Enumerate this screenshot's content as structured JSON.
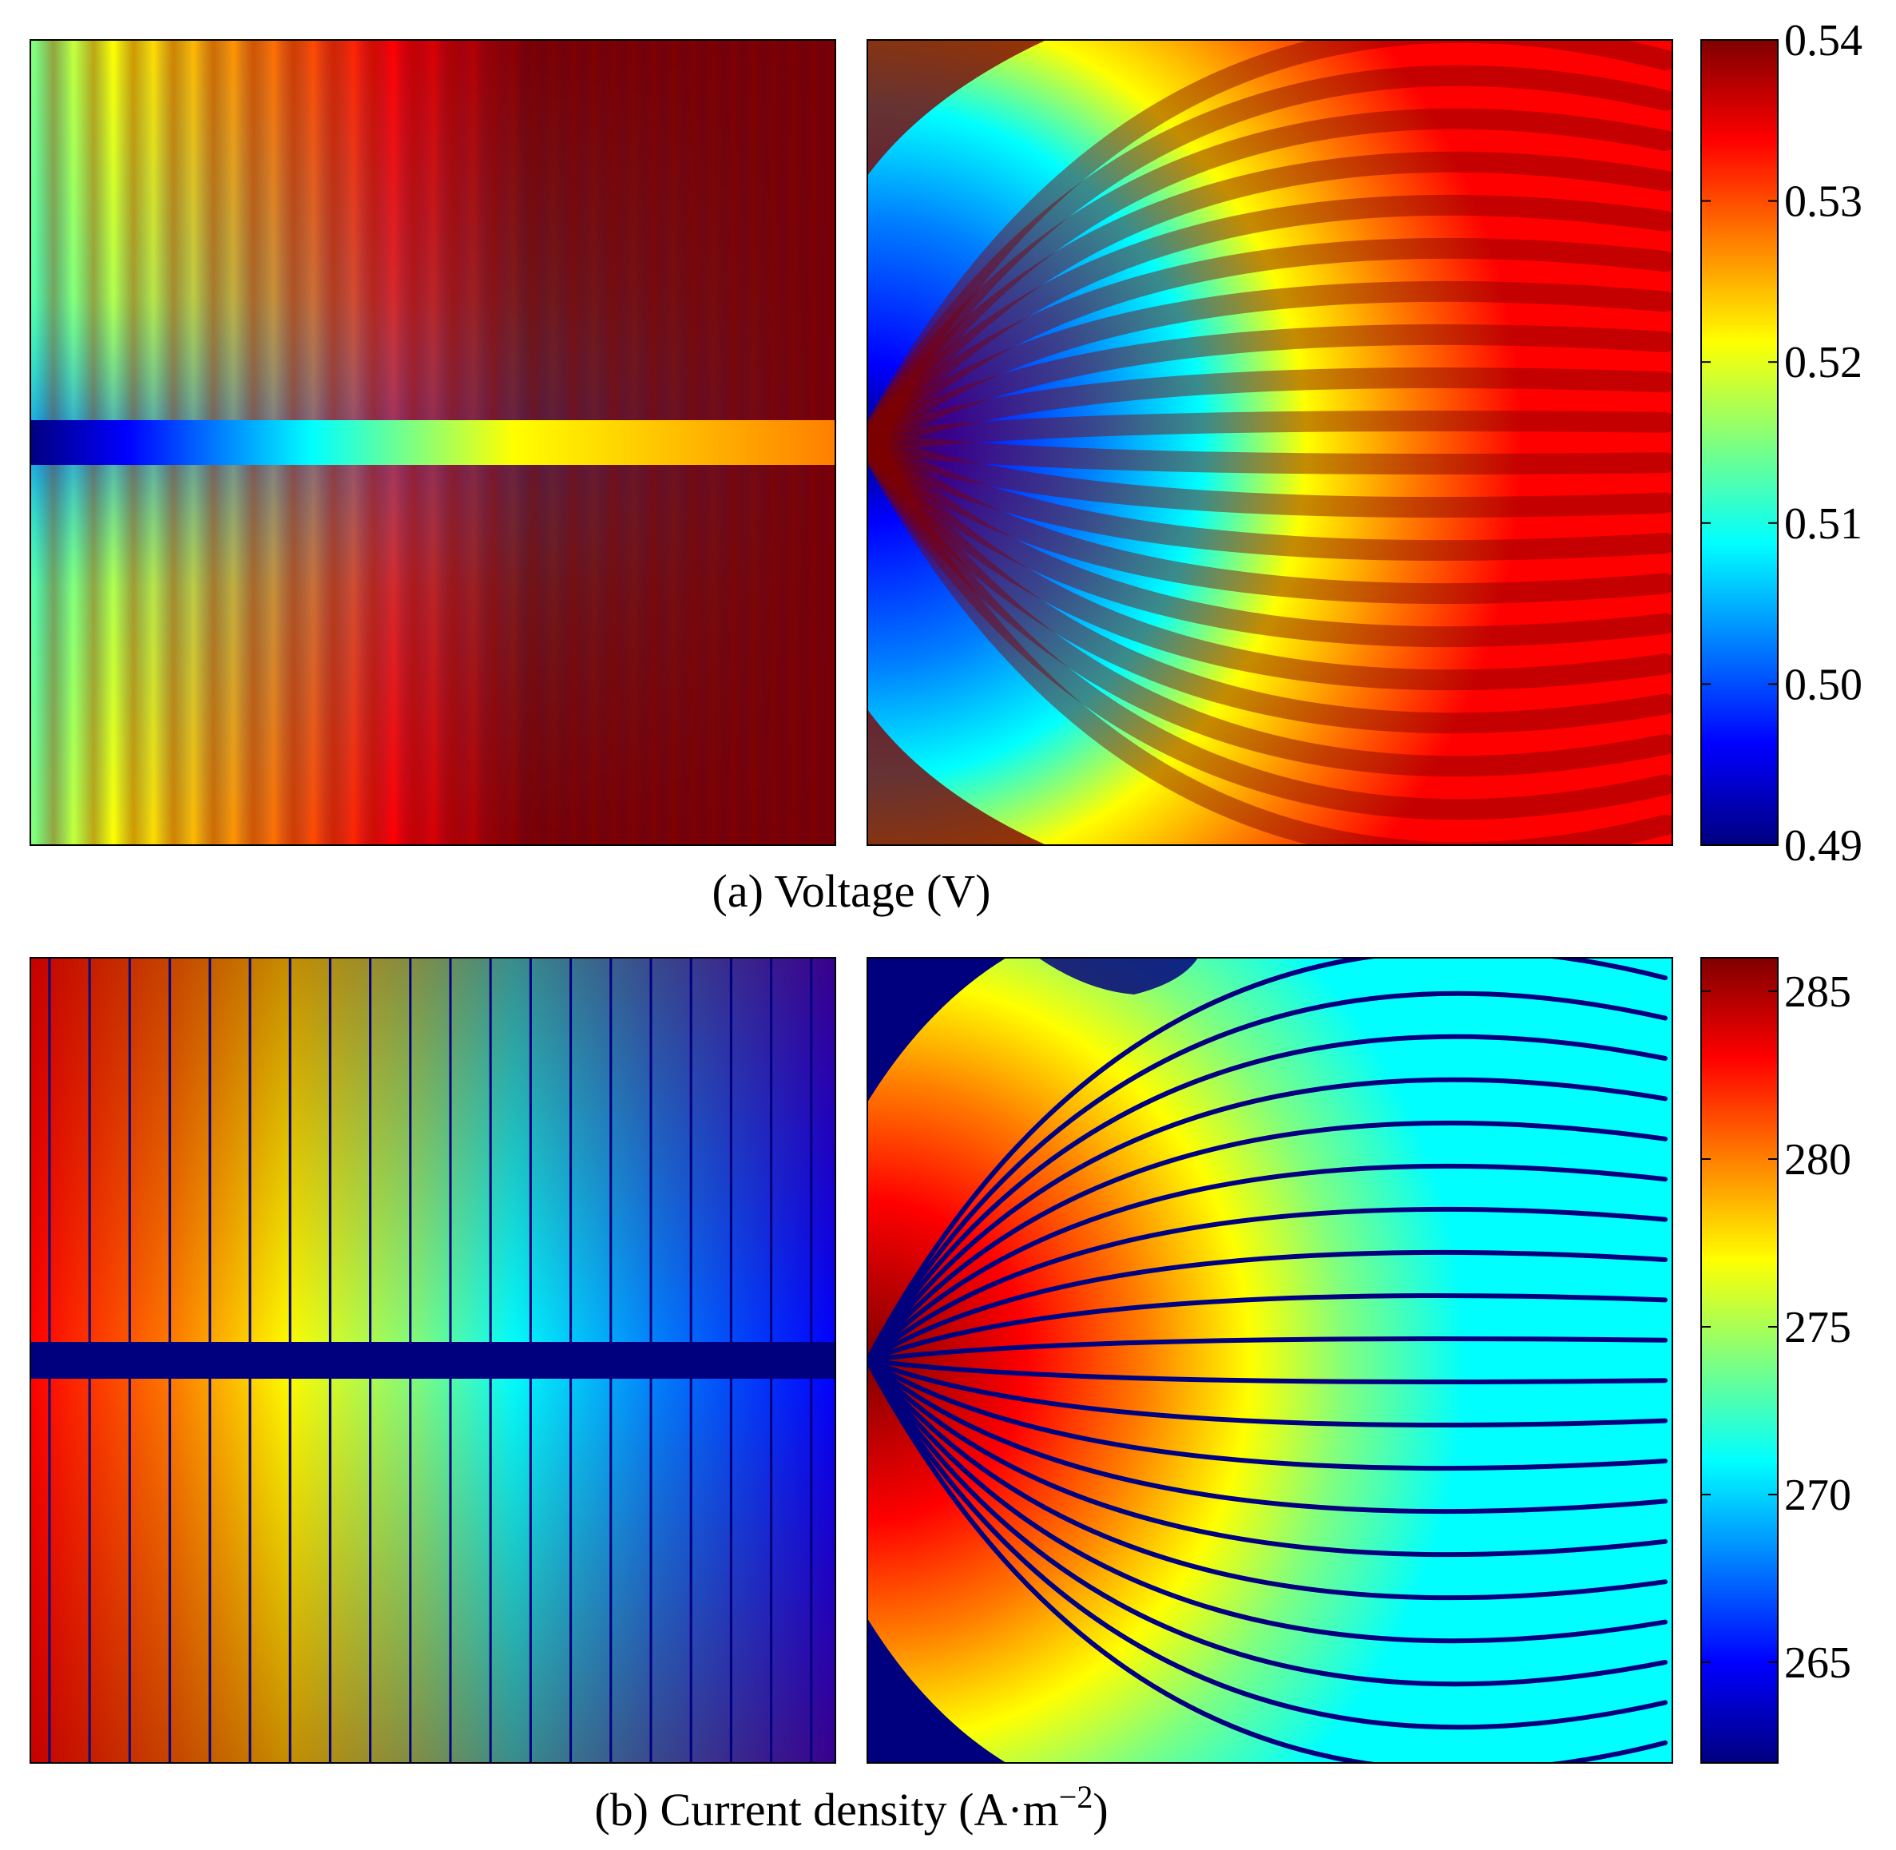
{
  "colormap": [
    "#00007f",
    "#0000ff",
    "#007fff",
    "#00ffff",
    "#7fff7f",
    "#ffff00",
    "#ff7f00",
    "#ff0000",
    "#7f0000"
  ],
  "chart_data": [
    {
      "type": "heatmap",
      "panel": "a",
      "caption": "(a) Voltage (V)",
      "quantity": "Voltage",
      "unit": "V",
      "colorbar": {
        "min": 0.49,
        "max": 0.54,
        "ticks": [
          0.49,
          0.5,
          0.51,
          0.52,
          0.53,
          0.54
        ],
        "tick_labels": [
          "0.49",
          "0.50",
          "0.51",
          "0.52",
          "0.53",
          "0.54"
        ]
      },
      "subplots": [
        {
          "pattern": "parallel",
          "min_value": 0.49,
          "max_value": 0.54
        },
        {
          "pattern": "radial",
          "min_value": 0.49,
          "max_value": 0.54
        }
      ]
    },
    {
      "type": "heatmap",
      "panel": "b",
      "caption_prefix": "(b) Current density (A·m",
      "caption_sup": "−2",
      "caption_suffix": ")",
      "quantity": "Current density",
      "unit": "A·m−2",
      "colorbar": {
        "min": 262,
        "max": 286,
        "ticks": [
          265,
          270,
          275,
          280,
          285
        ],
        "tick_labels": [
          "265",
          "270",
          "275",
          "280",
          "285"
        ]
      },
      "subplots": [
        {
          "pattern": "parallel",
          "min_value": 262,
          "max_value": 286
        },
        {
          "pattern": "radial",
          "min_value": 262,
          "max_value": 286
        }
      ]
    }
  ]
}
